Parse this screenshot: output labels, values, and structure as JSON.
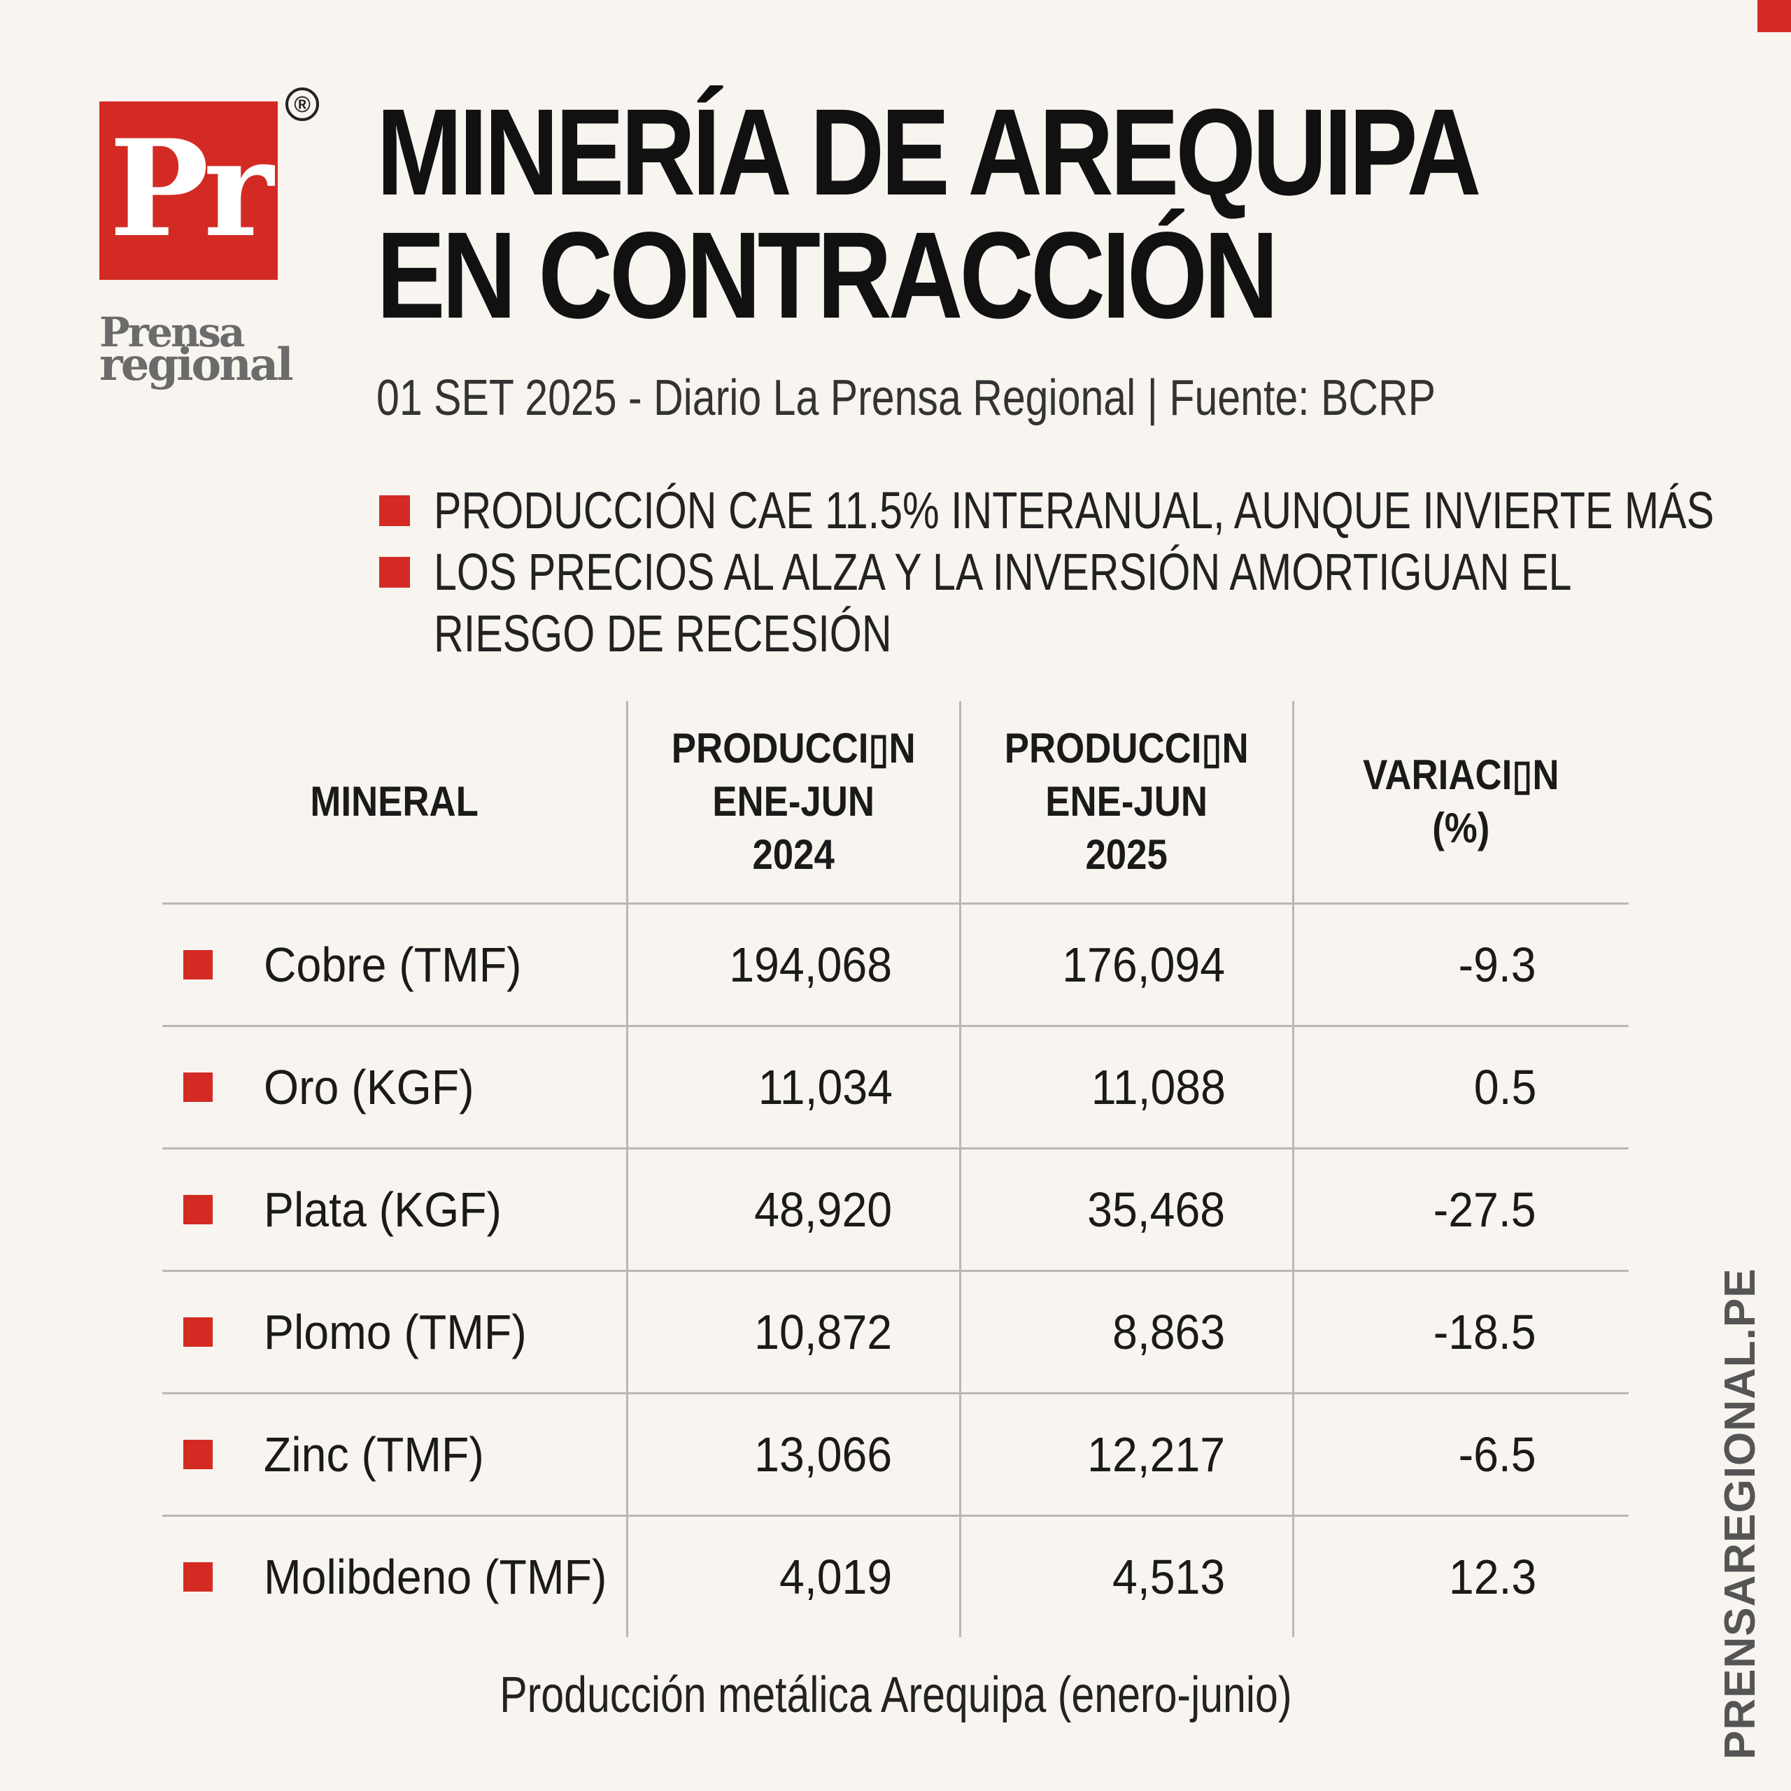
{
  "logo": {
    "letters": "Pr",
    "registered": "®",
    "word_line1": "Prensa",
    "word_line2": "regional"
  },
  "header": {
    "title_line1": "MINERÍA DE AREQUIPA",
    "title_line2": "EN CONTRACCIÓN",
    "subtitle": "01 SET 2025 - Diario La Prensa Regional | Fuente: BCRP"
  },
  "bullets": [
    "PRODUCCIÓN CAE 11.5% INTERANUAL, AUNQUE INVIERTE MÁS",
    "LOS PRECIOS AL ALZA Y LA INVERSIÓN AMORTIGUAN EL",
    "RIESGO DE RECESIÓN"
  ],
  "chart_data": {
    "type": "table",
    "title": "Producción metálica Arequipa (enero-junio)",
    "columns": [
      [
        "MINERAL"
      ],
      [
        "PRODUCCI▯N",
        "ENE-JUN",
        "2024"
      ],
      [
        "PRODUCCI▯N",
        "ENE-JUN",
        "2025"
      ],
      [
        "VARIACI▯N",
        "(%)"
      ]
    ],
    "rows": [
      {
        "mineral": "Cobre (TMF)",
        "prod_2024": "194,068",
        "prod_2025": "176,094",
        "variacion": "-9.3"
      },
      {
        "mineral": "Oro (KGF)",
        "prod_2024": "11,034",
        "prod_2025": "11,088",
        "variacion": "0.5"
      },
      {
        "mineral": "Plata (KGF)",
        "prod_2024": "48,920",
        "prod_2025": "35,468",
        "variacion": "-27.5"
      },
      {
        "mineral": "Plomo (TMF)",
        "prod_2024": "10,872",
        "prod_2025": "8,863",
        "variacion": "-18.5"
      },
      {
        "mineral": "Zinc (TMF)",
        "prod_2024": "13,066",
        "prod_2025": "12,217",
        "variacion": "-6.5"
      },
      {
        "mineral": "Molibdeno (TMF)",
        "prod_2024": "4,019",
        "prod_2025": "4,513",
        "variacion": "12.3"
      }
    ]
  },
  "footer": {
    "caption": "Producción metálica Arequipa (enero-junio)",
    "site": "PRENSAREGIONAL.PE"
  },
  "colors": {
    "accent": "#d42a24",
    "background": "#f8f4ef",
    "logo_gray": "#6b6b6b"
  }
}
